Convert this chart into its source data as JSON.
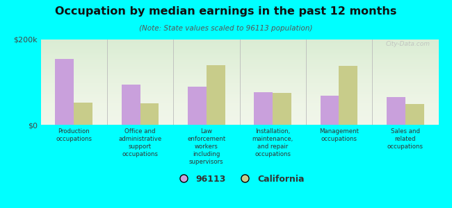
{
  "title": "Occupation by median earnings in the past 12 months",
  "subtitle": "(Note: State values scaled to 96113 population)",
  "categories": [
    "Production\noccupations",
    "Office and\nadministrative\nsupport\noccupations",
    "Law\nenforcement\nworkers\nincluding\nsupervisors",
    "Installation,\nmaintenance,\nand repair\noccupations",
    "Management\noccupations",
    "Sales and\nrelated\noccupations"
  ],
  "values_96113": [
    155000,
    95000,
    90000,
    77000,
    68000,
    65000
  ],
  "values_california": [
    52000,
    50000,
    140000,
    75000,
    138000,
    48000
  ],
  "color_96113": "#c9a0dc",
  "color_california": "#c8cc8a",
  "ylim": [
    0,
    200000
  ],
  "yticks": [
    0,
    200000
  ],
  "ytick_labels": [
    "$0",
    "$200k"
  ],
  "background_color": "#00ffff",
  "legend_label_96113": "96113",
  "legend_label_california": "California",
  "watermark": "City-Data.com",
  "bar_width": 0.28
}
